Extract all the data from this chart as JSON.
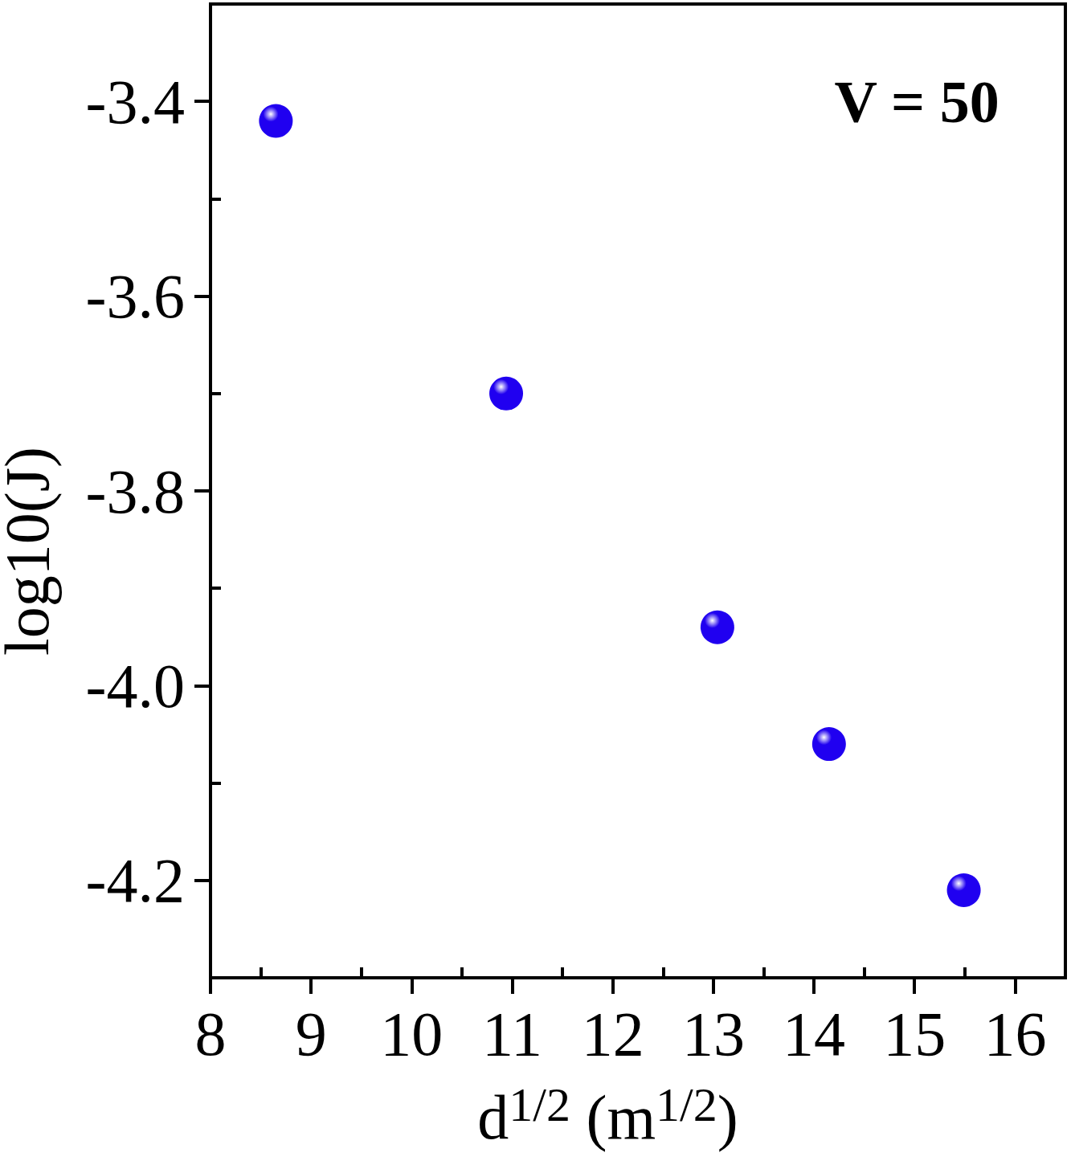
{
  "chart_data": {
    "type": "scatter",
    "xlabel": "d$^{1/2}$ (m$^{1/2}$)",
    "ylabel": "log10(J)",
    "annotations": [
      "V = 50"
    ],
    "x": [
      8.65,
      10.94,
      13.04,
      14.15,
      15.49
    ],
    "values": [
      -3.42,
      -3.7,
      -3.94,
      -4.06,
      -4.21
    ],
    "color": "#2000f0",
    "marker": "circle",
    "xlim": [
      8,
      16.5
    ],
    "xticks": [
      8,
      9,
      10,
      11,
      12,
      13,
      14,
      15,
      16
    ],
    "ylim": [
      -4.3,
      -3.3
    ],
    "yticks": [
      -4.2,
      {
        "value": -4,
        "label": "-4.0"
      },
      -3.8,
      -3.6,
      -3.4
    ]
  }
}
